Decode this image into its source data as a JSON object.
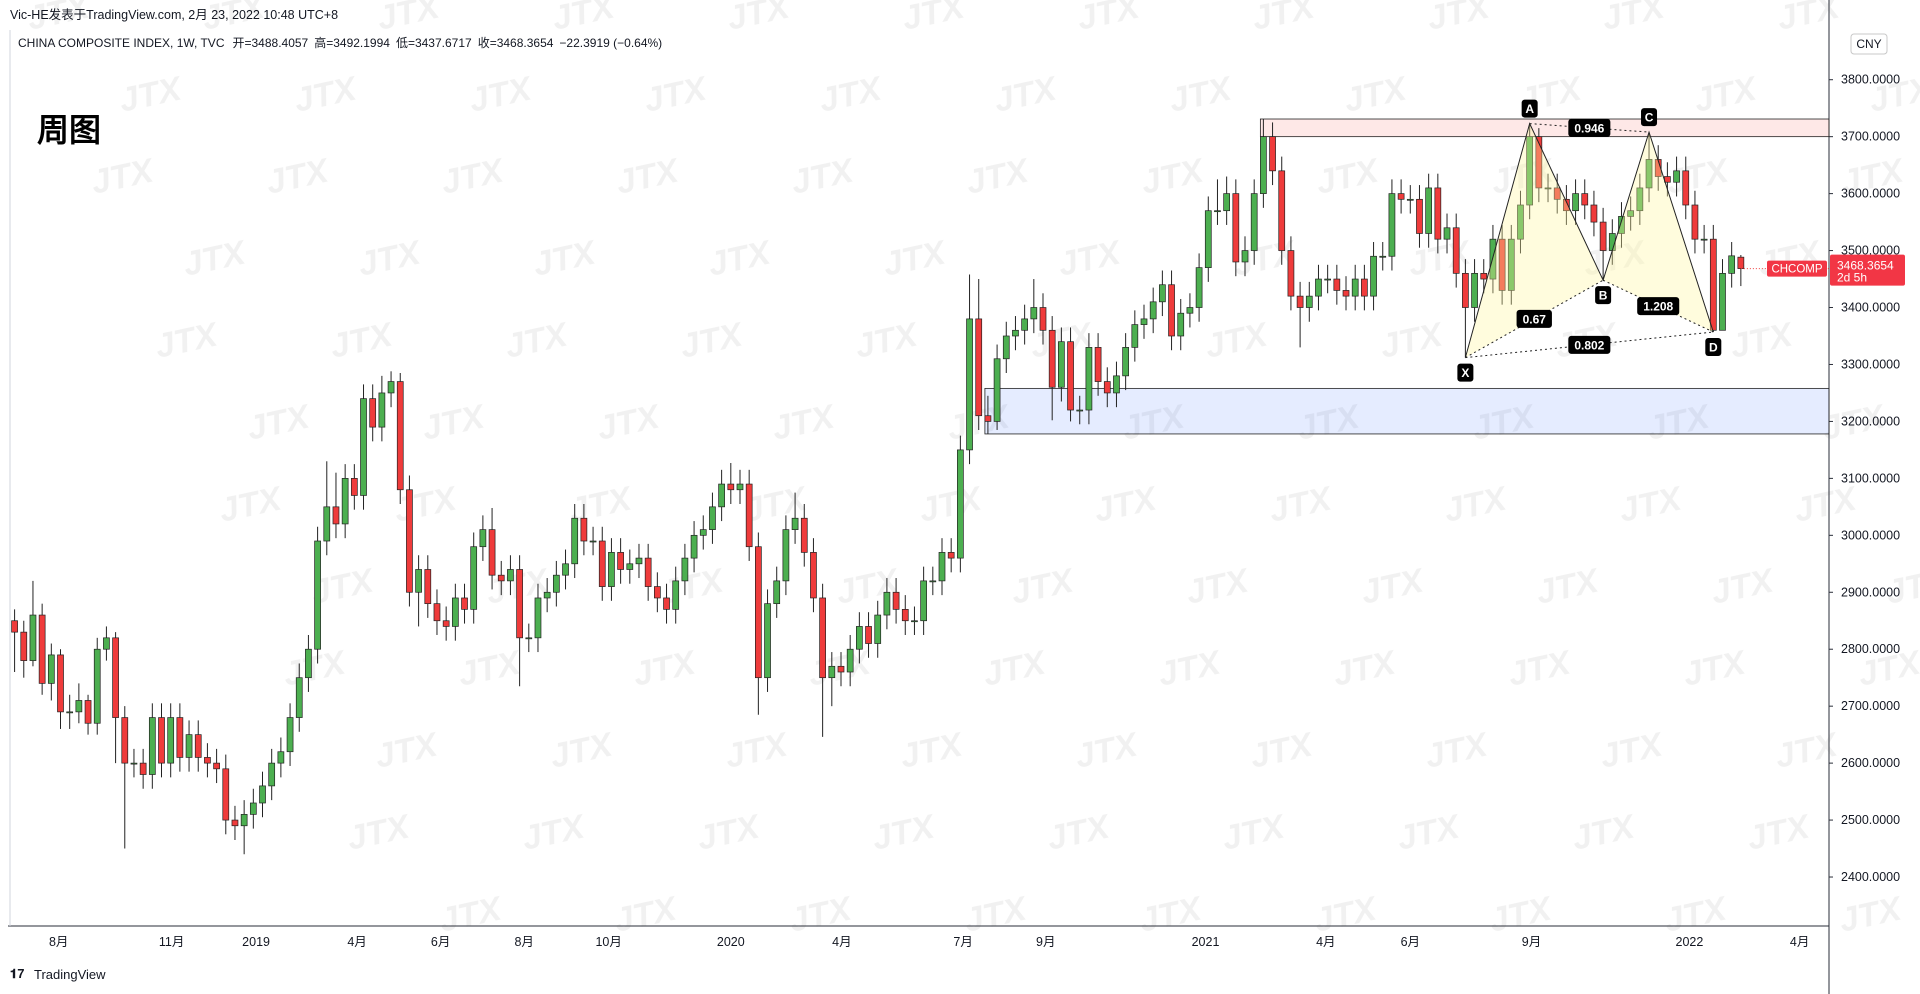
{
  "byline": "Vic-HE发表于TradingView.com, 2月 23, 2022 10:48 UTC+8",
  "footer": "TradingView",
  "chart_data": {
    "type": "candlestick",
    "title": "周图",
    "legend": {
      "symbol": "CHINA COMPOSITE INDEX, 1W, TVC",
      "fields": [
        "开=3488.4057",
        "高=3492.1994",
        "低=3437.6717",
        "收=3468.3654",
        "−22.3919 (−0.64%)"
      ]
    },
    "currency": "CNY",
    "symbol_tag": "CHCOMP",
    "countdown": "2d 5h",
    "watermark": "JTX",
    "grid": false,
    "up_color": "#4caf50",
    "down_color": "#ef3b3b",
    "open": [
      2850,
      2830,
      2780,
      2860,
      2740,
      2790,
      2690,
      2690,
      2710,
      2670,
      2800,
      2820,
      2680,
      2600,
      2600,
      2580,
      2680,
      2600,
      2680,
      2610,
      2650,
      2610,
      2600,
      2590,
      2500,
      2490,
      2510,
      2530,
      2560,
      2600,
      2620,
      2680,
      2750,
      2800,
      2990,
      3050,
      3020,
      3100,
      3070,
      3240,
      3190,
      3250,
      3270,
      3080,
      2900,
      2940,
      2880,
      2850,
      2840,
      2890,
      2870,
      2980,
      3010,
      2930,
      2920,
      2940,
      2820,
      2820,
      2890,
      2900,
      2930,
      2950,
      3030,
      2990,
      2990,
      2910,
      2970,
      2940,
      2950,
      2960,
      2910,
      2890,
      2870,
      2920,
      2960,
      3000,
      3010,
      3050,
      3090,
      3080,
      3090,
      2980,
      2750,
      2880,
      2920,
      3010,
      3030,
      2970,
      2890,
      2750,
      2770,
      2760,
      2800,
      2840,
      2810,
      2860,
      2900,
      2870,
      2850,
      2850,
      2920,
      2920,
      2970,
      2960,
      3150,
      3380,
      3210,
      3200,
      3310,
      3350,
      3360,
      3380,
      3400,
      3360,
      3260,
      3340,
      3220,
      3220,
      3330,
      3270,
      3250,
      3280,
      3330,
      3370,
      3380,
      3410,
      3440,
      3350,
      3390,
      3400,
      3470,
      3570,
      3570,
      3600,
      3480,
      3500,
      3600,
      3700,
      3640,
      3500,
      3420,
      3400,
      3420,
      3450,
      3450,
      3430,
      3420,
      3450,
      3420,
      3490,
      3490,
      3600,
      3590,
      3590,
      3530,
      3610,
      3520,
      3540,
      3460,
      3400,
      3460,
      3450,
      3520,
      3430,
      3520,
      3580,
      3700,
      3610,
      3610,
      3590,
      3570,
      3600,
      3580,
      3550,
      3500,
      3530,
      3560,
      3570,
      3610,
      3660,
      3630,
      3620,
      3640,
      3580,
      3520,
      3520,
      3360,
      3460,
      3488.4057
    ],
    "high": [
      2870,
      2850,
      2920,
      2880,
      2810,
      2800,
      2720,
      2740,
      2720,
      2820,
      2840,
      2830,
      2700,
      2625,
      2625,
      2705,
      2705,
      2705,
      2705,
      2675,
      2675,
      2635,
      2625,
      2615,
      2525,
      2535,
      2555,
      2585,
      2625,
      2645,
      2705,
      2775,
      2825,
      3015,
      3130,
      3110,
      3125,
      3125,
      3265,
      3265,
      3280,
      3288,
      3285,
      3105,
      2965,
      2965,
      2905,
      2875,
      2915,
      2915,
      3005,
      3035,
      3048,
      2955,
      2965,
      2965,
      2845,
      2915,
      2925,
      2955,
      2975,
      3055,
      3055,
      3015,
      3015,
      2995,
      2995,
      2975,
      2985,
      2985,
      2935,
      2915,
      2945,
      2985,
      3025,
      3035,
      3075,
      3115,
      3127,
      3115,
      3115,
      3005,
      2905,
      2945,
      3035,
      3075,
      3055,
      2995,
      2915,
      2795,
      2795,
      2825,
      2865,
      2865,
      2885,
      2925,
      2925,
      2895,
      2875,
      2945,
      2945,
      2995,
      2995,
      3175,
      3458,
      3450,
      3245,
      3335,
      3375,
      3385,
      3405,
      3450,
      3425,
      3385,
      3365,
      3365,
      3245,
      3355,
      3355,
      3295,
      3305,
      3355,
      3395,
      3405,
      3435,
      3465,
      3465,
      3415,
      3425,
      3495,
      3595,
      3625,
      3630,
      3625,
      3525,
      3625,
      3731,
      3725,
      3665,
      3525,
      3445,
      3445,
      3475,
      3475,
      3475,
      3455,
      3475,
      3475,
      3515,
      3515,
      3625,
      3625,
      3615,
      3615,
      3635,
      3635,
      3565,
      3565,
      3485,
      3485,
      3485,
      3545,
      3545,
      3545,
      3605,
      3723,
      3715,
      3635,
      3635,
      3615,
      3625,
      3625,
      3605,
      3575,
      3555,
      3585,
      3595,
      3635,
      3708,
      3685,
      3655,
      3665,
      3665,
      3605,
      3545,
      3545,
      3485,
      3515,
      3492.1994
    ],
    "low": [
      2760,
      2750,
      2770,
      2720,
      2710,
      2660,
      2660,
      2670,
      2650,
      2650,
      2780,
      2600,
      2450,
      2575,
      2555,
      2555,
      2575,
      2575,
      2585,
      2585,
      2585,
      2575,
      2565,
      2475,
      2465,
      2440,
      2485,
      2505,
      2535,
      2575,
      2595,
      2655,
      2725,
      2775,
      2965,
      2995,
      2995,
      3045,
      3045,
      3165,
      3165,
      3225,
      3055,
      2875,
      2840,
      2855,
      2825,
      2815,
      2815,
      2845,
      2845,
      2955,
      2905,
      2895,
      2895,
      2735,
      2795,
      2795,
      2865,
      2875,
      2905,
      2925,
      2965,
      2965,
      2885,
      2885,
      2915,
      2915,
      2925,
      2885,
      2865,
      2845,
      2845,
      2895,
      2935,
      2975,
      2985,
      3025,
      3055,
      3055,
      2955,
      2685,
      2725,
      2855,
      2895,
      2985,
      2945,
      2865,
      2646,
      2700,
      2735,
      2735,
      2775,
      2785,
      2785,
      2835,
      2845,
      2825,
      2825,
      2825,
      2895,
      2895,
      2935,
      2935,
      3125,
      3185,
      3178,
      3185,
      3285,
      3325,
      3335,
      3355,
      3335,
      3202,
      3235,
      3200,
      3195,
      3195,
      3245,
      3225,
      3225,
      3255,
      3305,
      3345,
      3355,
      3385,
      3325,
      3325,
      3365,
      3375,
      3445,
      3545,
      3545,
      3455,
      3455,
      3475,
      3575,
      3615,
      3475,
      3395,
      3330,
      3375,
      3395,
      3425,
      3405,
      3395,
      3395,
      3395,
      3395,
      3465,
      3465,
      3565,
      3565,
      3505,
      3505,
      3495,
      3495,
      3435,
      3312,
      3375,
      3425,
      3425,
      3405,
      3405,
      3495,
      3555,
      3585,
      3585,
      3565,
      3545,
      3545,
      3555,
      3525,
      3448,
      3475,
      3505,
      3535,
      3545,
      3585,
      3605,
      3595,
      3595,
      3555,
      3495,
      3495,
      3357,
      3370,
      3435,
      3437.6717
    ],
    "close": [
      2830,
      2780,
      2860,
      2740,
      2790,
      2690,
      2690,
      2710,
      2670,
      2800,
      2820,
      2680,
      2600,
      2600,
      2580,
      2680,
      2600,
      2680,
      2610,
      2650,
      2610,
      2600,
      2590,
      2500,
      2490,
      2510,
      2530,
      2560,
      2600,
      2620,
      2680,
      2750,
      2800,
      2990,
      3050,
      3020,
      3100,
      3070,
      3240,
      3190,
      3250,
      3270,
      3080,
      2900,
      2940,
      2880,
      2850,
      2840,
      2890,
      2870,
      2980,
      3010,
      2930,
      2920,
      2940,
      2820,
      2820,
      2890,
      2900,
      2930,
      2950,
      3030,
      2990,
      2990,
      2910,
      2970,
      2940,
      2950,
      2960,
      2910,
      2890,
      2870,
      2920,
      2960,
      3000,
      3010,
      3050,
      3090,
      3080,
      3090,
      2980,
      2750,
      2880,
      2920,
      3010,
      3030,
      2970,
      2890,
      2750,
      2770,
      2760,
      2800,
      2840,
      2810,
      2860,
      2900,
      2870,
      2850,
      2850,
      2920,
      2920,
      2970,
      2960,
      3150,
      3380,
      3210,
      3200,
      3310,
      3350,
      3360,
      3380,
      3400,
      3360,
      3260,
      3340,
      3220,
      3220,
      3330,
      3270,
      3250,
      3280,
      3330,
      3370,
      3380,
      3410,
      3440,
      3350,
      3390,
      3400,
      3470,
      3570,
      3570,
      3600,
      3480,
      3500,
      3600,
      3700,
      3640,
      3500,
      3420,
      3400,
      3420,
      3450,
      3450,
      3430,
      3420,
      3450,
      3420,
      3490,
      3490,
      3600,
      3590,
      3590,
      3530,
      3610,
      3520,
      3540,
      3460,
      3400,
      3460,
      3450,
      3520,
      3430,
      3520,
      3580,
      3700,
      3610,
      3610,
      3590,
      3570,
      3600,
      3580,
      3550,
      3500,
      3530,
      3560,
      3570,
      3610,
      3660,
      3630,
      3620,
      3640,
      3580,
      3520,
      3520,
      3360,
      3460,
      3490.7573,
      3468.3654
    ],
    "xlim": [
      -0.5,
      197.6
    ],
    "xticks": [
      {
        "value": 4.8,
        "label": "8月"
      },
      {
        "value": 17.1,
        "label": "11月"
      },
      {
        "value": 26.3,
        "label": "2019"
      },
      {
        "value": 37.3,
        "label": "4月"
      },
      {
        "value": 46.4,
        "label": "6月"
      },
      {
        "value": 55.5,
        "label": "8月"
      },
      {
        "value": 64.7,
        "label": "10月"
      },
      {
        "value": 78,
        "label": "2020"
      },
      {
        "value": 90.1,
        "label": "4月"
      },
      {
        "value": 103.3,
        "label": "7月"
      },
      {
        "value": 112.3,
        "label": "9月"
      },
      {
        "value": 129.7,
        "label": "2021"
      },
      {
        "value": 142.8,
        "label": "4月"
      },
      {
        "value": 152,
        "label": "6月"
      },
      {
        "value": 165.2,
        "label": "9月"
      },
      {
        "value": 182.4,
        "label": "2022"
      },
      {
        "value": 194.4,
        "label": "4月"
      }
    ],
    "ylim": [
      2314,
      3875
    ],
    "yticks": [
      {
        "value": 2400,
        "label": "2400.0000"
      },
      {
        "value": 2500,
        "label": "2500.0000"
      },
      {
        "value": 2600,
        "label": "2600.0000"
      },
      {
        "value": 2700,
        "label": "2700.0000"
      },
      {
        "value": 2800,
        "label": "2800.0000"
      },
      {
        "value": 2900,
        "label": "2900.0000"
      },
      {
        "value": 3000,
        "label": "3000.0000"
      },
      {
        "value": 3100,
        "label": "3100.0000"
      },
      {
        "value": 3200,
        "label": "3200.0000"
      },
      {
        "value": 3300,
        "label": "3300.0000"
      },
      {
        "value": 3400,
        "label": "3400.0000"
      },
      {
        "value": 3500,
        "label": "3500.0000"
      },
      {
        "value": 3600,
        "label": "3600.0000"
      },
      {
        "value": 3700,
        "label": "3700.0000"
      },
      {
        "value": 3800,
        "label": "3800.0000"
      }
    ],
    "zones": [
      {
        "top": 3731,
        "bottom": 3700,
        "color": "#f44336"
      },
      {
        "top": 3258,
        "bottom": 3178,
        "color": "#2962ff"
      }
    ],
    "pattern": {
      "points": [
        {
          "label": "X",
          "price": 3312
        },
        {
          "label": "A",
          "price": 3723
        },
        {
          "label": "B",
          "price": 3448
        },
        {
          "label": "C",
          "price": 3708
        },
        {
          "label": "D",
          "price": 3357
        }
      ],
      "ratios": [
        {
          "from": 0,
          "to": 2,
          "label": "0.67"
        },
        {
          "from": 1,
          "to": 3,
          "label": "0.946"
        },
        {
          "from": 0,
          "to": 4,
          "label": "0.802"
        },
        {
          "from": 2,
          "to": 4,
          "label": "1.208"
        }
      ]
    }
  }
}
